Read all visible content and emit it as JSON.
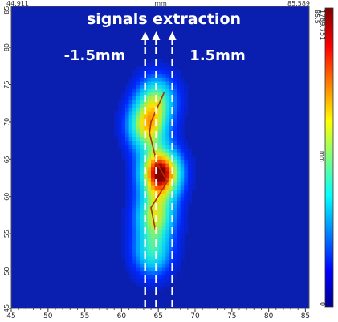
{
  "header": {
    "x_min_readout": "44.911",
    "x_unit": "mm",
    "x_max_readout": "85.589"
  },
  "overlay": {
    "title": "signals extraction",
    "left_offset": "-1.5mm",
    "right_offset": "1.5mm"
  },
  "colorbar": {
    "max_label": "1789.751",
    "min_label": "0",
    "unit": "mm"
  },
  "chart_data": {
    "type": "heatmap",
    "title": "signals extraction",
    "xlabel": "mm",
    "ylabel": "mm",
    "xlim": [
      45,
      85.5
    ],
    "ylim": [
      45,
      85.5
    ],
    "x_ticks": [
      45,
      50,
      55,
      60,
      65,
      70,
      75,
      80,
      85
    ],
    "y_ticks": [
      45,
      50,
      55,
      60,
      65,
      70,
      75,
      80,
      85
    ],
    "y_top_label": "85.5",
    "value_range": [
      0,
      1789.751
    ],
    "colormap": "jet",
    "hotspots": [
      {
        "x": 65.3,
        "y": 63.2,
        "intensity": 1.0
      },
      {
        "x": 63.5,
        "y": 69.5,
        "intensity": 0.62
      },
      {
        "x": 64.8,
        "y": 73.2,
        "intensity": 0.45
      },
      {
        "x": 64.6,
        "y": 57.5,
        "intensity": 0.55
      },
      {
        "x": 64.2,
        "y": 52.5,
        "intensity": 0.4
      }
    ],
    "trace_line": {
      "x": [
        65.8,
        64.0,
        63.8,
        64.8,
        66.2,
        64.0,
        64.6
      ],
      "y": [
        74.0,
        70.0,
        68.5,
        64.5,
        62.0,
        58.5,
        55.5
      ],
      "color": "#b03000"
    },
    "extraction_lines_x": [
      63.2,
      64.7,
      66.9
    ],
    "extraction_offset_mm": 1.5
  }
}
